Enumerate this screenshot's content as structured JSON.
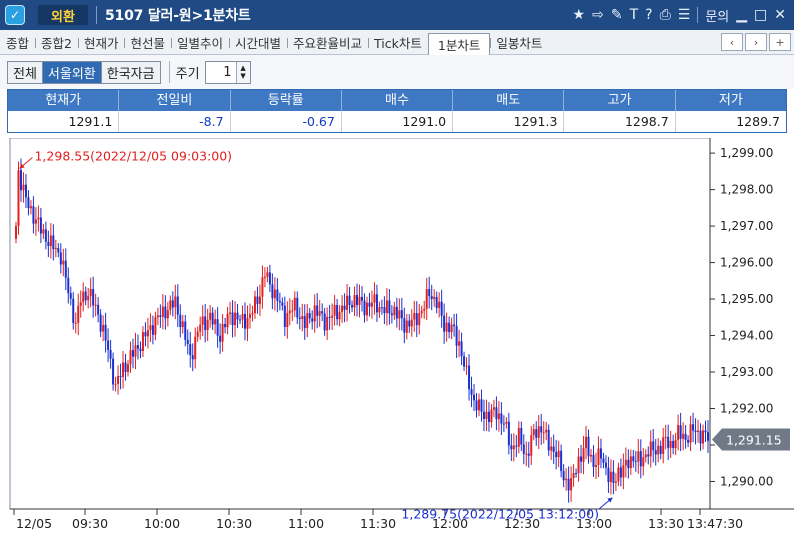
{
  "titlebar": {
    "badge": "외환",
    "title": "5107 달러-원>1분차트",
    "right_label": "문의"
  },
  "tabs": [
    {
      "label": "종합"
    },
    {
      "label": "종합2"
    },
    {
      "label": "현재가"
    },
    {
      "label": "현선물"
    },
    {
      "label": "일별추이"
    },
    {
      "label": "시간대별"
    },
    {
      "label": "주요환율비교"
    },
    {
      "label": "Tick차트"
    },
    {
      "label": "1분차트",
      "active": true
    },
    {
      "label": "일봉차트"
    }
  ],
  "filters": {
    "options": [
      "전체",
      "서울외환",
      "한국자금"
    ],
    "selected": "서울외환",
    "cycle_label": "주기",
    "cycle_value": "1"
  },
  "quote": {
    "headers": [
      "현재가",
      "전일비",
      "등락률",
      "매수",
      "매도",
      "고가",
      "저가"
    ],
    "values": [
      "1291.1",
      "-8.7",
      "-0.67",
      "1291.0",
      "1291.3",
      "1298.7",
      "1289.7"
    ]
  },
  "colors": {
    "up": "#e02020",
    "down": "#1a2fd0",
    "titlebar": "#1f4a84",
    "header": "#3f78c2"
  },
  "chart_data": {
    "type": "candlestick",
    "y_ticks": [
      "1,299.00",
      "1,298.00",
      "1,297.00",
      "1,296.00",
      "1,295.00",
      "1,294.00",
      "1,293.00",
      "1,292.00",
      "1,291.00",
      "1,290.00"
    ],
    "ylim": [
      1289.3,
      1299.25
    ],
    "x_ticks": [
      "12/05",
      "09:30",
      "10:00",
      "10:30",
      "11:00",
      "11:30",
      "12:00",
      "12:30",
      "13:00",
      "13:30",
      "13:47:30"
    ],
    "current_price_label": "1,291.15",
    "current_price": 1291.15,
    "high_annotation": "1,298.55(2022/12/05 09:03:00)",
    "high_value": 1298.55,
    "low_annotation": "1,289.75(2022/12/05 13:12:00)",
    "low_value": 1289.75,
    "path": [
      [
        0,
        1297.0
      ],
      [
        1,
        1298.5
      ],
      [
        4,
        1297.7
      ],
      [
        10,
        1296.9
      ],
      [
        14,
        1296.5
      ],
      [
        18,
        1296.2
      ],
      [
        21,
        1295.2
      ],
      [
        24,
        1294.3
      ],
      [
        26,
        1295.0
      ],
      [
        29,
        1295.2
      ],
      [
        33,
        1294.6
      ],
      [
        37,
        1293.6
      ],
      [
        40,
        1292.6
      ],
      [
        43,
        1293.1
      ],
      [
        47,
        1293.5
      ],
      [
        52,
        1294.0
      ],
      [
        56,
        1294.4
      ],
      [
        60,
        1294.7
      ],
      [
        64,
        1294.9
      ],
      [
        67,
        1294.2
      ],
      [
        70,
        1293.4
      ],
      [
        74,
        1294.3
      ],
      [
        78,
        1294.5
      ],
      [
        82,
        1294.0
      ],
      [
        86,
        1294.6
      ],
      [
        90,
        1294.4
      ],
      [
        94,
        1294.5
      ],
      [
        98,
        1295.2
      ],
      [
        100,
        1295.7
      ],
      [
        102,
        1295.4
      ],
      [
        105,
        1295.0
      ],
      [
        108,
        1294.5
      ],
      [
        112,
        1294.8
      ],
      [
        116,
        1294.3
      ],
      [
        120,
        1294.7
      ],
      [
        124,
        1294.4
      ],
      [
        128,
        1294.6
      ],
      [
        132,
        1294.8
      ],
      [
        136,
        1295.0
      ],
      [
        140,
        1294.8
      ],
      [
        144,
        1294.9
      ],
      [
        148,
        1294.7
      ],
      [
        152,
        1294.7
      ],
      [
        156,
        1294.3
      ],
      [
        160,
        1294.4
      ],
      [
        164,
        1294.8
      ],
      [
        166,
        1295.2
      ],
      [
        169,
        1294.9
      ],
      [
        172,
        1294.3
      ],
      [
        175,
        1294.2
      ],
      [
        178,
        1293.8
      ],
      [
        181,
        1292.9
      ],
      [
        184,
        1292.2
      ],
      [
        187,
        1291.9
      ],
      [
        190,
        1291.8
      ],
      [
        193,
        1291.9
      ],
      [
        196,
        1291.6
      ],
      [
        199,
        1290.9
      ],
      [
        202,
        1291.2
      ],
      [
        205,
        1290.7
      ],
      [
        208,
        1291.3
      ],
      [
        211,
        1291.5
      ],
      [
        214,
        1291.0
      ],
      [
        217,
        1290.8
      ],
      [
        220,
        1290.1
      ],
      [
        223,
        1289.9
      ],
      [
        226,
        1290.6
      ],
      [
        229,
        1291.0
      ],
      [
        232,
        1290.5
      ],
      [
        235,
        1290.7
      ],
      [
        238,
        1290.2
      ],
      [
        240,
        1289.9
      ],
      [
        242,
        1290.3
      ],
      [
        245,
        1290.4
      ],
      [
        248,
        1290.7
      ],
      [
        251,
        1290.5
      ],
      [
        254,
        1290.9
      ],
      [
        257,
        1290.8
      ],
      [
        260,
        1291.1
      ],
      [
        263,
        1291.0
      ],
      [
        266,
        1291.3
      ],
      [
        269,
        1291.2
      ],
      [
        272,
        1291.4
      ],
      [
        275,
        1291.3
      ],
      [
        278,
        1291.2
      ]
    ]
  }
}
